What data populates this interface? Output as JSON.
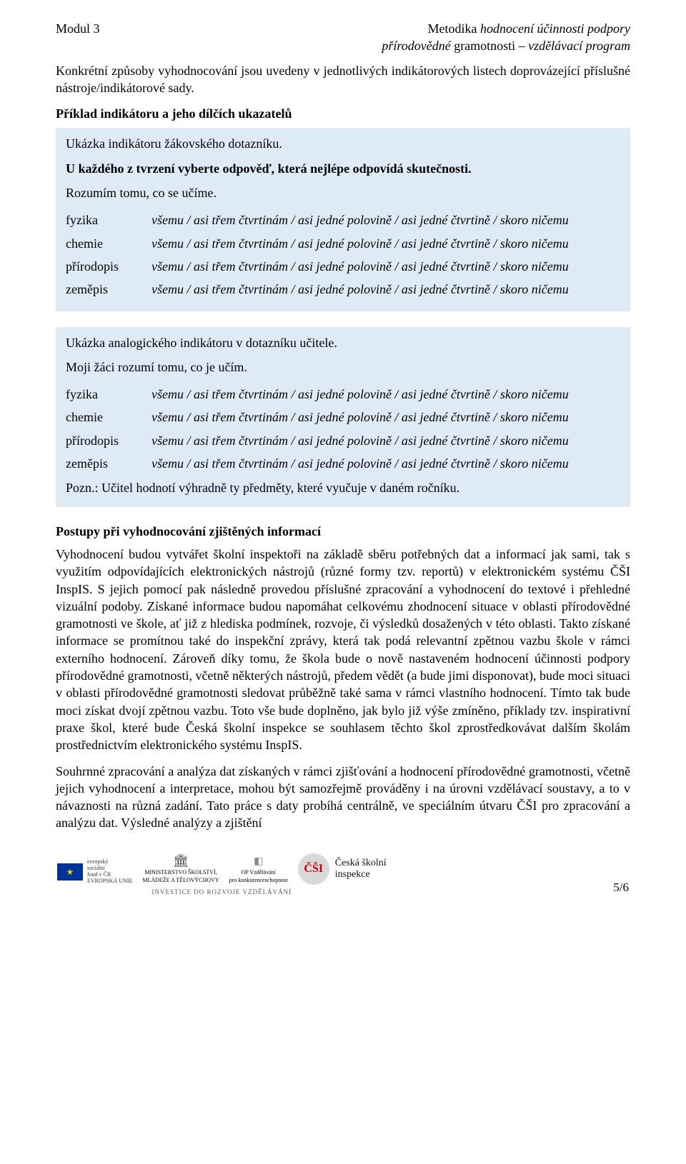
{
  "header": {
    "left": "Modul 3",
    "right_line1_prefix": "Metodika",
    "right_line1_italic": " hodnocení účinnosti podpory",
    "right_line2_italic": "přírodovědné ",
    "right_line2_rest": "gramotnosti – ",
    "right_line2_italic2": "vzdělávací program"
  },
  "intro": "Konkrétní způsoby vyhodnocování jsou uvedeny v jednotlivých indikátorových listech doprovázející příslušné nástroje/indikátorové sady.",
  "heading1": "Příklad indikátoru a jeho dílčích ukazatelů",
  "box1": {
    "line1": "Ukázka indikátoru žákovského dotazníku.",
    "line2": "U každého z tvrzení vyberte odpověď, která nejlépe odpovídá skutečnosti.",
    "line3": "Rozumím tomu, co se učíme.",
    "subjects": [
      "fyzika",
      "chemie",
      "přírodopis",
      "zeměpis"
    ],
    "options": "všemu / asi třem čtvrtinám / asi jedné polovině / asi jedné čtvrtině / skoro ničemu"
  },
  "box2": {
    "line1": "Ukázka analogického indikátoru v dotazníku učitele.",
    "line2": "Moji žáci rozumí tomu, co je učím.",
    "subjects": [
      "fyzika",
      "chemie",
      "přírodopis",
      "zeměpis"
    ],
    "options": "všemu / asi třem čtvrtinám / asi jedné polovině / asi jedné čtvrtině / skoro ničemu",
    "footnote": "Pozn.: Učitel hodnotí výhradně ty předměty, které vyučuje v daném ročníku."
  },
  "heading2": "Postupy při vyhodnocování zjištěných informací",
  "para1": "Vyhodnocení budou vytvářet školní inspektoři na základě sběru potřebných dat a informací jak sami, tak s využitím odpovídajících elektronických nástrojů (různé formy tzv. reportů) v elektronickém systému ČŠI InspIS. S jejich pomocí pak následně provedou příslušné zpracování a vyhodnocení do textové i přehledné vizuální podoby. Získané informace budou napomáhat celkovému zhodnocení situace v oblasti přírodovědné gramotnosti ve škole, ať již z hlediska podmínek, rozvoje, či výsledků dosažených v této oblasti. Takto získané informace se promítnou také do inspekční zprávy, která tak podá relevantní zpětnou vazbu škole v rámci externího hodnocení. Zároveň díky tomu, že škola bude o nově nastaveném hodnocení účinnosti podpory přírodovědné gramotnosti, včetně některých nástrojů, předem vědět (a bude jimi disponovat), bude moci situaci v oblasti přírodovědné gramotnosti sledovat průběžně také sama v rámci vlastního hodnocení. Tímto tak bude moci získat dvojí zpětnou vazbu. Toto vše bude doplněno, jak bylo již výše zmíněno, příklady tzv. inspirativní praxe škol, které bude Česká školní inspekce se souhlasem těchto škol zprostředkovávat dalším školám prostřednictvím elektronického systému InspIS.",
  "para2": "Souhrnné zpracování a analýza dat získaných v rámci zjišťování a hodnocení přírodovědné gramotnosti, včetně jejich vyhodnocení a interpretace, mohou být samozřejmě prováděny i na úrovni vzdělávací soustavy, a to v návaznosti na různá zadání. Tato práce s daty probíhá centrálně, ve speciálním útvaru ČŠI pro zpracování a analýzu dat. Výsledné analýzy a zjištění",
  "footer": {
    "eu_text": "evropský\nsociální\nfond v ČR",
    "eu_union": "EVROPSKÁ UNIE",
    "msmt": "MINISTERSTVO ŠKOLSTVÍ,\nMLÁDEŽE A TĚLOVÝCHOVY",
    "op": "OP Vzdělávání\npro konkurenceschopnost",
    "csi_abbr": "ČŠI",
    "csi_text": "Česká školní\ninspekce",
    "invest": "INVESTICE DO ROZVOJE VZDĚLÁVÁNÍ",
    "page": "5/6"
  },
  "colors": {
    "box_bg": "#deeaf6",
    "text": "#000000",
    "eu_blue": "#003399",
    "eu_gold": "#ffcc00"
  }
}
